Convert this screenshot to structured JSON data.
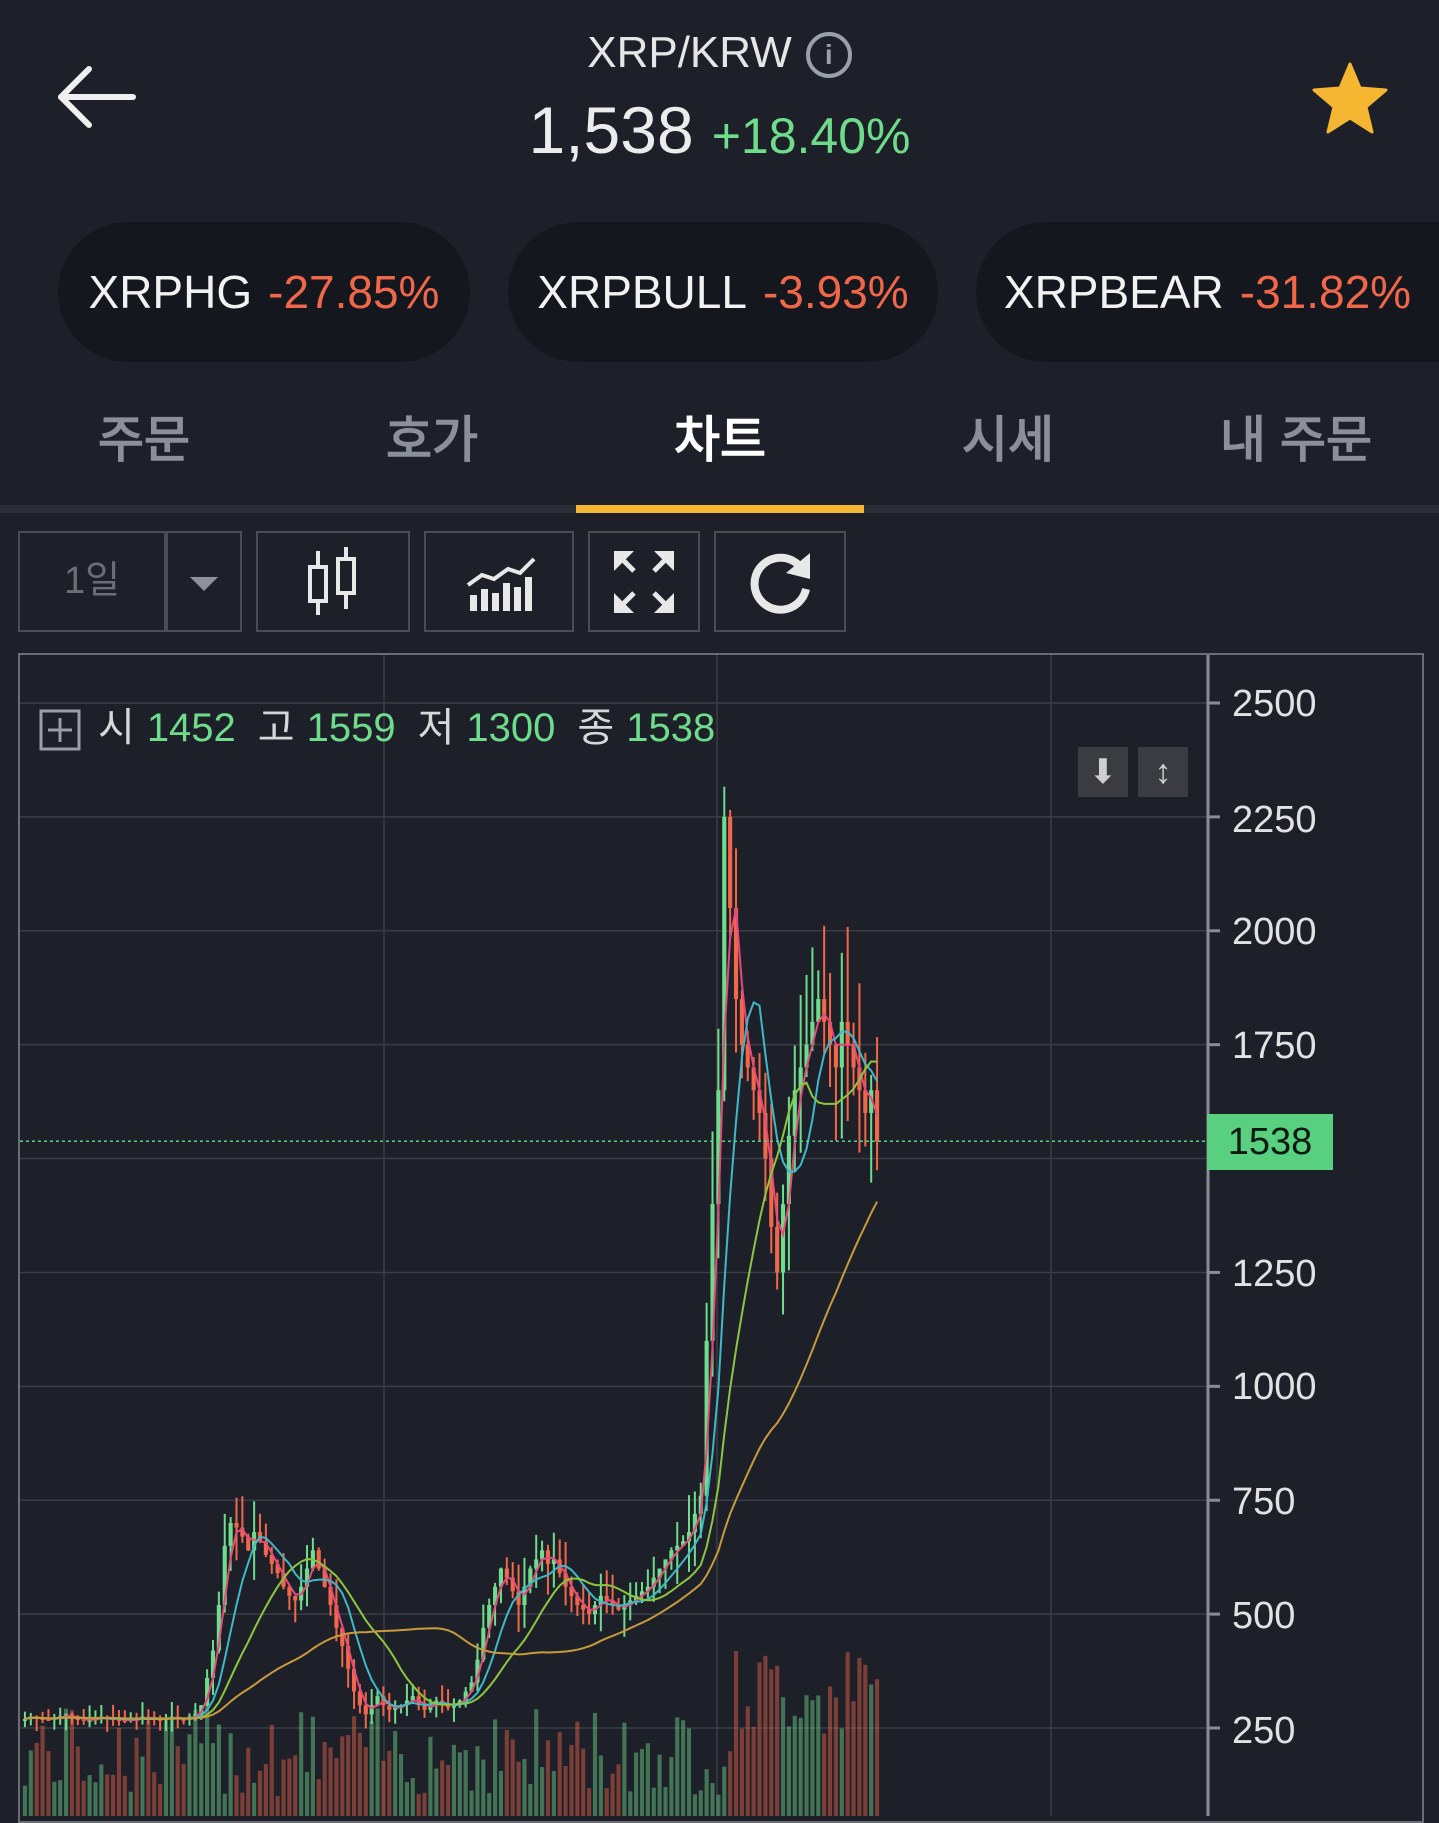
{
  "header": {
    "pair": "XRP/KRW",
    "info_icon": "i",
    "price": "1,538",
    "change": "+18.40%"
  },
  "colors": {
    "up": "#6fdc8c",
    "down": "#f0674a",
    "accent": "#f5b731",
    "bg": "#1e2029"
  },
  "related": [
    {
      "name": "XRPHG",
      "pct": "-27.85%"
    },
    {
      "name": "XRPBULL",
      "pct": "-3.93%"
    },
    {
      "name": "XRPBEAR",
      "pct": "-31.82%"
    }
  ],
  "tabs": [
    "주문",
    "호가",
    "차트",
    "시세",
    "내 주문"
  ],
  "active_tab": "차트",
  "toolbar": {
    "period": "1일"
  },
  "icons": [
    "back-arrow-icon",
    "info-icon",
    "star-icon",
    "dropdown-icon",
    "candlestick-icon",
    "indicator-icon",
    "expand-icon",
    "refresh-icon",
    "crosshair-icon",
    "scroll-down-icon",
    "scale-icon"
  ],
  "ohlc": {
    "open_label": "시",
    "open": "1452",
    "high_label": "고",
    "high": "1559",
    "low_label": "저",
    "low": "1300",
    "close_label": "종",
    "close": "1538"
  },
  "chart_data": {
    "type": "candlestick",
    "title": "",
    "y_ticks": [
      "2500",
      "2250",
      "2000",
      "1750",
      "1250",
      "1000",
      "750",
      "500",
      "250"
    ],
    "ylim": [
      150,
      2600
    ],
    "last_price": "1538",
    "ma_colors": [
      "#e34b7d",
      "#3fb8c7",
      "#8cc63f",
      "#c79a3c"
    ],
    "grid": true,
    "close_series": [
      270,
      275,
      272,
      270,
      268,
      273,
      276,
      280,
      272,
      270,
      266,
      268,
      271,
      275,
      272,
      270,
      268,
      265,
      270,
      268,
      275,
      272,
      270,
      268,
      272,
      275,
      270,
      268,
      275,
      280,
      300,
      360,
      420,
      520,
      650,
      700,
      690,
      670,
      640,
      680,
      660,
      630,
      610,
      590,
      560,
      540,
      530,
      560,
      600,
      640,
      600,
      560,
      520,
      470,
      430,
      380,
      330,
      300,
      280,
      300,
      320,
      300,
      290,
      295,
      300,
      310,
      320,
      300,
      290,
      300,
      310,
      305,
      295,
      300,
      310,
      330,
      350,
      400,
      470,
      520,
      560,
      600,
      580,
      550,
      520,
      560,
      600,
      620,
      640,
      610,
      620,
      590,
      560,
      540,
      520,
      510,
      500,
      520,
      540,
      530,
      520,
      510,
      520,
      530,
      540,
      550,
      560,
      580,
      600,
      620,
      640,
      650,
      660,
      680,
      720,
      760,
      1100,
      1400,
      1650,
      2250,
      2050,
      1850,
      1750,
      1700,
      1650,
      1600,
      1500,
      1350,
      1250,
      1400,
      1550,
      1650,
      1700,
      1750,
      1800,
      1850,
      1800,
      1750,
      1700,
      1800,
      1750,
      1700,
      1650,
      1600,
      1650,
      1538
    ]
  }
}
